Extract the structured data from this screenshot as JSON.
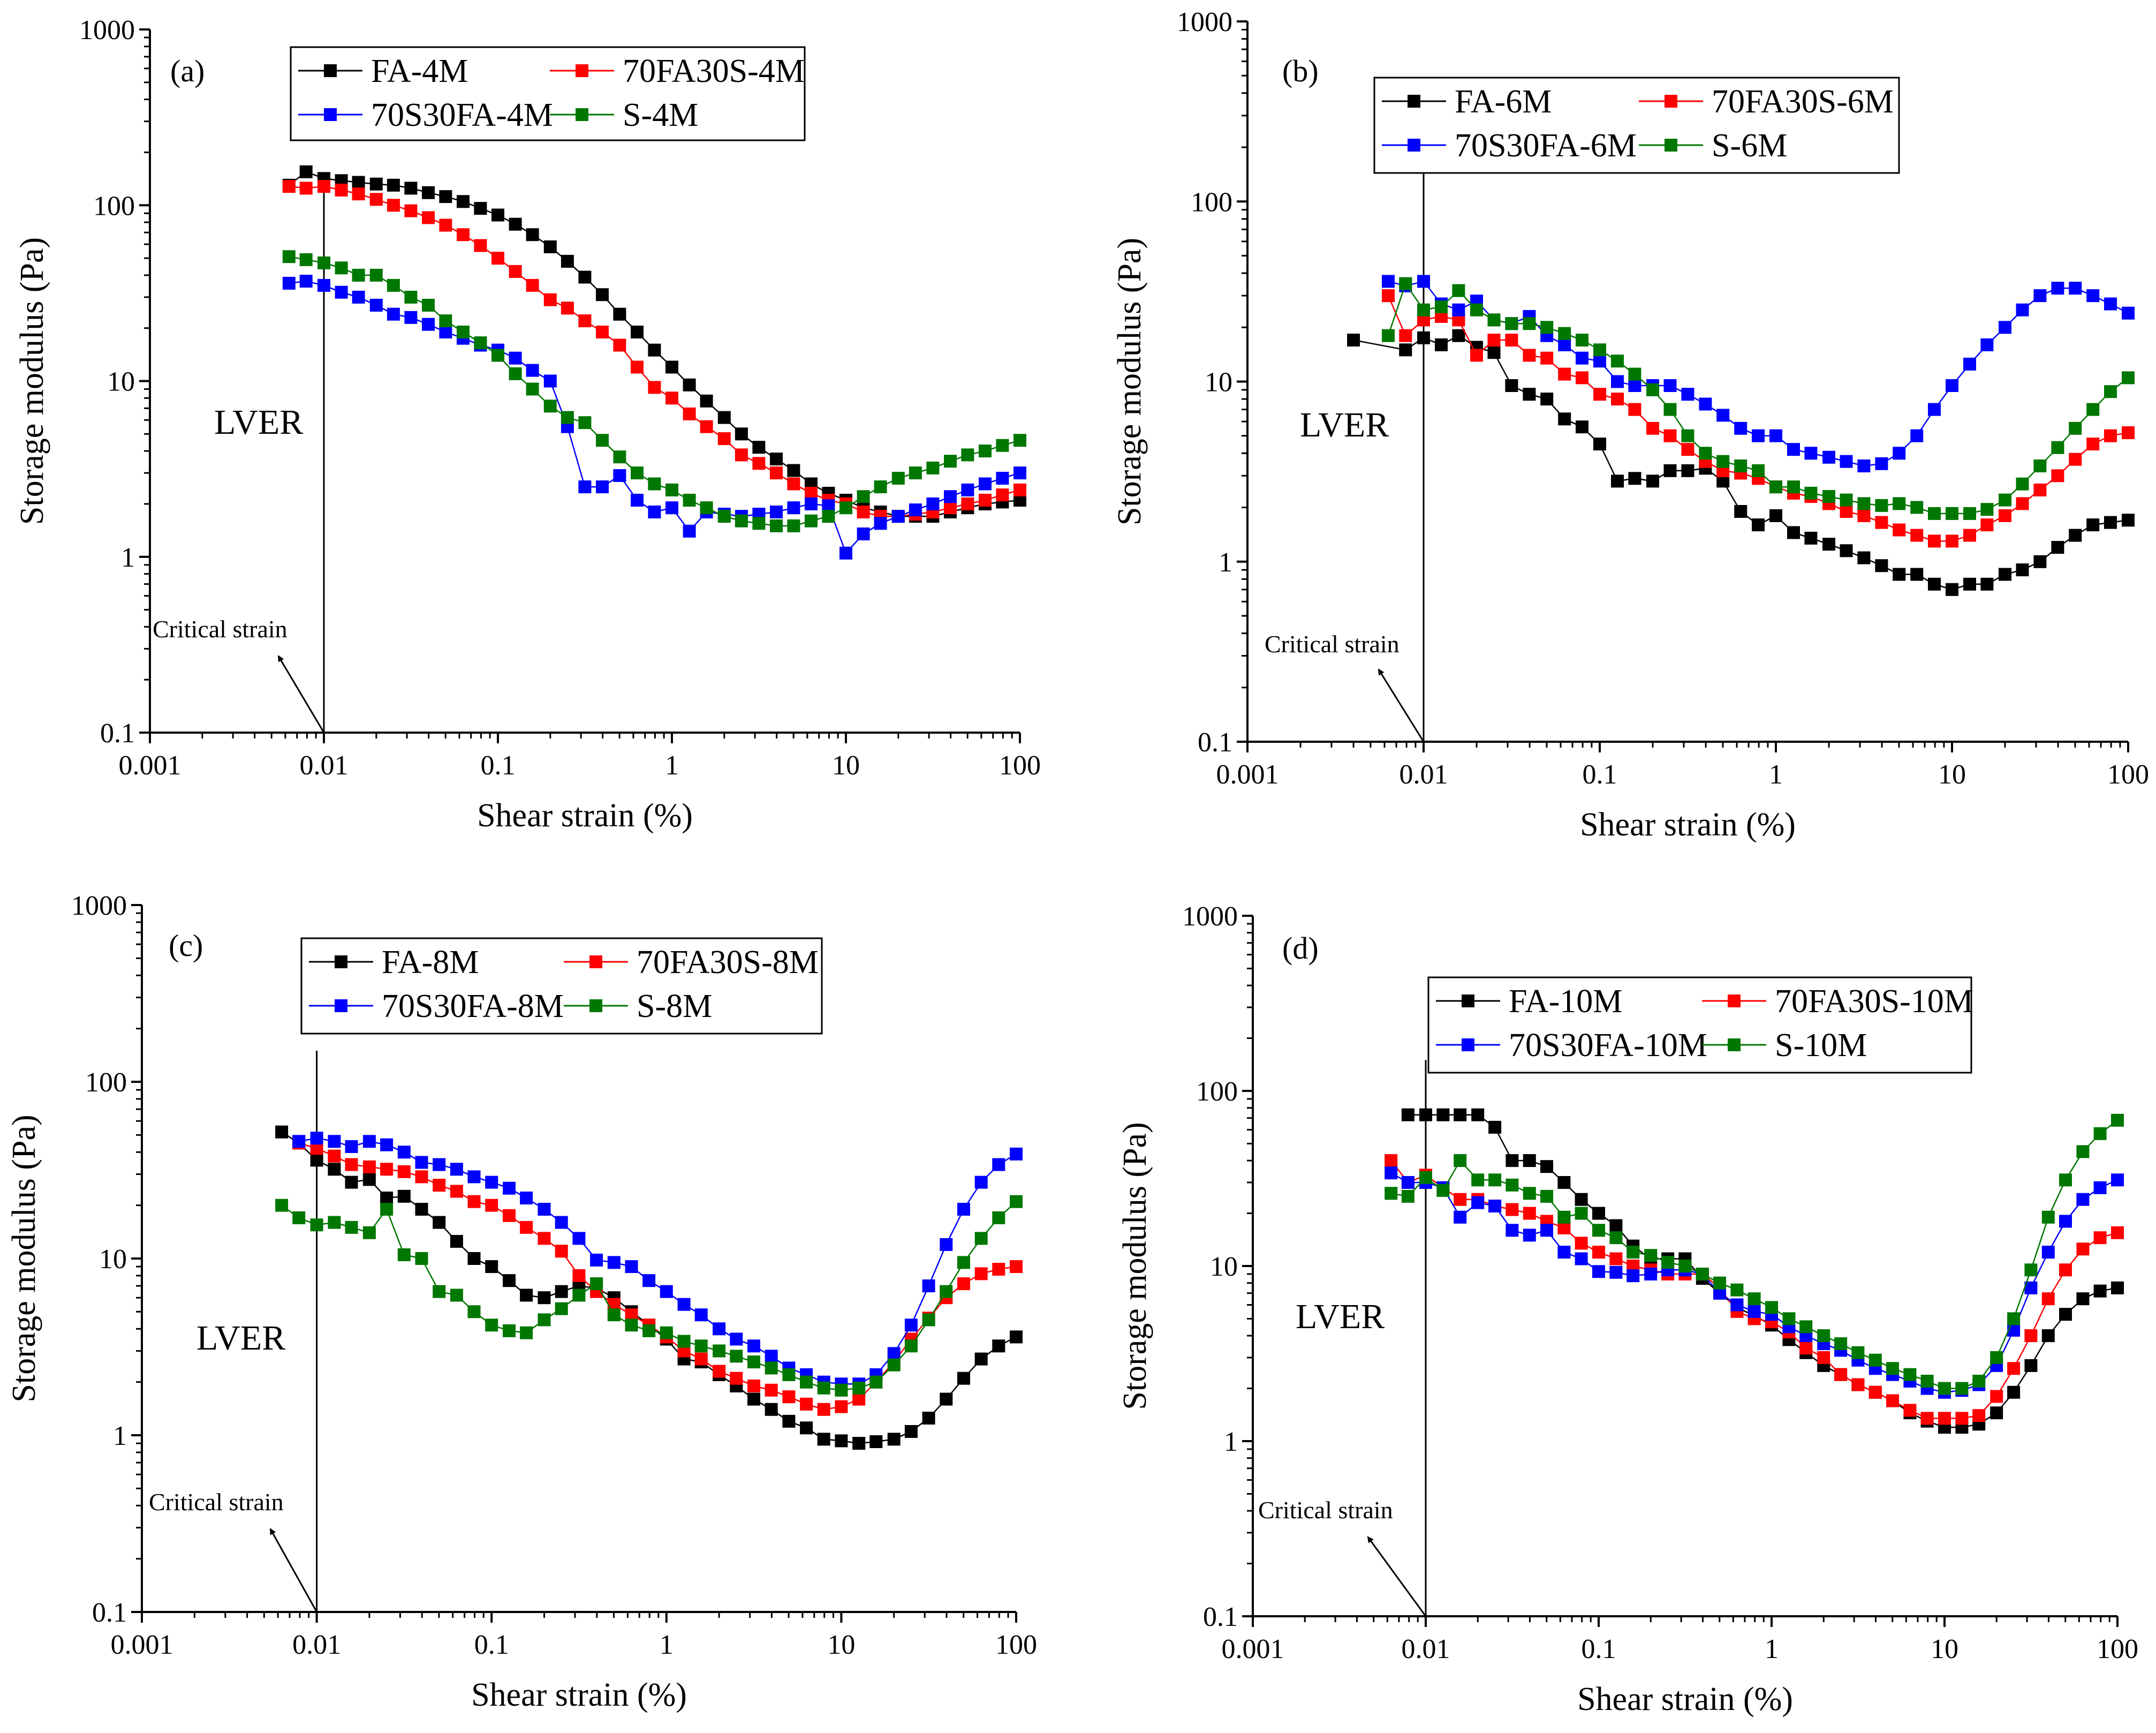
{
  "colors": {
    "black": "#000000",
    "red": "#ff0000",
    "blue": "#0000ff",
    "green": "#007700"
  },
  "chart_data": [
    {
      "type": "scatter",
      "id": "a",
      "panel_label": "(a)",
      "xlabel": "Shear strain (%)",
      "ylabel": "Storage modulus (Pa)",
      "xscale": "log",
      "yscale": "log",
      "xlim": [
        0.001,
        100
      ],
      "ylim": [
        0.1,
        1000
      ],
      "x_tick_labels": [
        "0.001",
        "0.01",
        "0.1",
        "1",
        "10",
        "100"
      ],
      "y_tick_labels": [
        "0.1",
        "1",
        "10",
        "100",
        "1000"
      ],
      "annotations": {
        "lver": "LVER",
        "critical_strain": "Critical strain",
        "critical_strain_x": 0.01
      },
      "legend_position": "top-center",
      "x": [
        0.0063,
        0.0079,
        0.01,
        0.0126,
        0.0158,
        0.02,
        0.0251,
        0.0316,
        0.0398,
        0.0501,
        0.0631,
        0.0794,
        0.1,
        0.126,
        0.158,
        0.2,
        0.251,
        0.316,
        0.398,
        0.501,
        0.631,
        0.794,
        1,
        1.26,
        1.58,
        2,
        2.51,
        3.16,
        3.98,
        5.01,
        6.31,
        7.94,
        10,
        12.6,
        15.8,
        20,
        25.1,
        31.6,
        39.8,
        50.1,
        63.1,
        79.4,
        100
      ],
      "series": [
        {
          "name": "FA-4M",
          "color": "#000000",
          "values": [
            130,
            155,
            142,
            138,
            135,
            132,
            130,
            125,
            118,
            112,
            105,
            96,
            88,
            78,
            68,
            58,
            48,
            39,
            31,
            24,
            19,
            15,
            12,
            9.5,
            7.7,
            6.2,
            5,
            4.2,
            3.6,
            3.1,
            2.6,
            2.3,
            2.1,
            1.9,
            1.8,
            1.7,
            1.7,
            1.7,
            1.8,
            1.9,
            2,
            2.05,
            2.1
          ]
        },
        {
          "name": "70FA30S-4M",
          "color": "#ff0000",
          "values": [
            128,
            125,
            128,
            122,
            116,
            108,
            100,
            93,
            85,
            77,
            68,
            59,
            50,
            42,
            35,
            29,
            26,
            22,
            19,
            16,
            12,
            9.2,
            8,
            6.5,
            5.5,
            4.7,
            3.8,
            3.4,
            3,
            2.6,
            2.3,
            2.1,
            2.0,
            1.8,
            1.7,
            1.7,
            1.75,
            1.8,
            1.9,
            2.0,
            2.1,
            2.25,
            2.4
          ]
        },
        {
          "name": "70S30FA-4M",
          "color": "#0000ff",
          "values": [
            36,
            37,
            35,
            32,
            30,
            27,
            24,
            23,
            21,
            19,
            17.5,
            16,
            15,
            13.5,
            11.5,
            10,
            5.5,
            2.5,
            2.5,
            2.9,
            2.1,
            1.8,
            1.9,
            1.4,
            1.8,
            1.75,
            1.7,
            1.75,
            1.8,
            1.9,
            2.0,
            1.95,
            1.05,
            1.35,
            1.55,
            1.7,
            1.85,
            2.0,
            2.2,
            2.4,
            2.6,
            2.8,
            3.0
          ]
        },
        {
          "name": "S-4M",
          "color": "#007700",
          "values": [
            51,
            49,
            47,
            44,
            40,
            40,
            35,
            30,
            27,
            22,
            19,
            16.5,
            14,
            11,
            9,
            7.2,
            6.2,
            5.8,
            4.6,
            3.7,
            3,
            2.6,
            2.4,
            2.1,
            1.9,
            1.7,
            1.6,
            1.55,
            1.5,
            1.5,
            1.6,
            1.7,
            1.9,
            2.2,
            2.5,
            2.8,
            3.0,
            3.2,
            3.5,
            3.8,
            4.0,
            4.3,
            4.6
          ]
        }
      ]
    },
    {
      "type": "scatter",
      "id": "b",
      "panel_label": "(b)",
      "xlabel": "Shear strain (%)",
      "ylabel": "Storage modulus (Pa)",
      "xscale": "log",
      "yscale": "log",
      "xlim": [
        0.001,
        100
      ],
      "ylim": [
        0.1,
        1000
      ],
      "x_tick_labels": [
        "0.001",
        "0.01",
        "0.1",
        "1",
        "10",
        "100"
      ],
      "y_tick_labels": [
        "0.1",
        "1",
        "10",
        "100",
        "1000"
      ],
      "annotations": {
        "lver": "LVER",
        "critical_strain": "Critical strain",
        "critical_strain_x": 0.01
      },
      "legend_position": "top-center",
      "x": [
        0.004,
        0.0063,
        0.0079,
        0.01,
        0.0126,
        0.0158,
        0.02,
        0.0251,
        0.0316,
        0.0398,
        0.0501,
        0.0631,
        0.0794,
        0.1,
        0.126,
        0.158,
        0.2,
        0.251,
        0.316,
        0.398,
        0.501,
        0.631,
        0.794,
        1,
        1.26,
        1.58,
        2,
        2.51,
        3.16,
        3.98,
        5.01,
        6.31,
        7.94,
        10,
        12.6,
        15.8,
        20,
        25.1,
        31.6,
        39.8,
        50.1,
        63.1,
        79.4,
        100
      ],
      "series": [
        {
          "name": "FA-6M",
          "color": "#000000",
          "values": [
            17,
            null,
            15,
            17.5,
            16,
            18,
            15.5,
            14.5,
            9.5,
            8.5,
            8,
            6.2,
            5.6,
            4.5,
            2.8,
            2.9,
            2.8,
            3.2,
            3.2,
            3.3,
            2.8,
            1.9,
            1.6,
            1.8,
            1.45,
            1.35,
            1.25,
            1.15,
            1.05,
            0.95,
            0.85,
            0.85,
            0.75,
            0.7,
            0.75,
            0.75,
            0.85,
            0.9,
            1.0,
            1.2,
            1.4,
            1.6,
            1.65,
            1.7
          ]
        },
        {
          "name": "70FA30S-6M",
          "color": "#ff0000",
          "values": [
            null,
            30,
            18,
            22,
            23,
            22,
            14,
            17,
            17,
            14,
            13.5,
            11,
            10.5,
            8.5,
            8,
            7,
            5.5,
            5,
            4.2,
            3.6,
            3.2,
            3.1,
            2.9,
            2.6,
            2.4,
            2.3,
            2.1,
            1.9,
            1.8,
            1.65,
            1.5,
            1.4,
            1.3,
            1.3,
            1.4,
            1.6,
            1.8,
            2.1,
            2.5,
            3.0,
            3.7,
            4.5,
            5.0,
            5.2
          ]
        },
        {
          "name": "70S30FA-6M",
          "color": "#0000ff",
          "values": [
            null,
            36,
            34,
            36,
            27,
            25,
            28,
            22,
            21,
            23,
            18,
            16,
            13.5,
            13,
            10,
            9.5,
            9.5,
            9.5,
            8.5,
            7.5,
            6.5,
            5.5,
            5,
            5,
            4.2,
            4,
            3.8,
            3.6,
            3.4,
            3.5,
            4,
            5,
            7,
            9.5,
            12.5,
            16,
            20,
            25,
            30,
            33,
            33,
            30,
            27,
            24
          ]
        },
        {
          "name": "S-6M",
          "color": "#007700",
          "values": [
            null,
            18,
            35,
            25,
            26,
            32,
            25,
            22,
            21,
            21,
            20,
            18.5,
            17,
            15,
            13,
            11,
            9,
            7,
            5,
            4,
            3.6,
            3.4,
            3.2,
            2.6,
            2.6,
            2.4,
            2.3,
            2.2,
            2.1,
            2.05,
            2.1,
            2.0,
            1.85,
            1.85,
            1.85,
            1.95,
            2.2,
            2.7,
            3.4,
            4.3,
            5.5,
            7.0,
            8.8,
            10.5
          ]
        }
      ]
    },
    {
      "type": "scatter",
      "id": "c",
      "panel_label": "(c)",
      "xlabel": "Shear strain (%)",
      "ylabel": "Storage modulus (Pa)",
      "xscale": "log",
      "yscale": "log",
      "xlim": [
        0.001,
        100
      ],
      "ylim": [
        0.1,
        1000
      ],
      "x_tick_labels": [
        "0.001",
        "0.01",
        "0.1",
        "1",
        "10",
        "100"
      ],
      "y_tick_labels": [
        "0.1",
        "1",
        "10",
        "100",
        "1000"
      ],
      "annotations": {
        "lver": "LVER",
        "critical_strain": "Critical strain",
        "critical_strain_x": 0.01
      },
      "legend_position": "top-center",
      "x": [
        0.0063,
        0.0079,
        0.01,
        0.0126,
        0.0158,
        0.02,
        0.0251,
        0.0316,
        0.0398,
        0.0501,
        0.0631,
        0.0794,
        0.1,
        0.126,
        0.158,
        0.2,
        0.251,
        0.316,
        0.398,
        0.501,
        0.631,
        0.794,
        1,
        1.26,
        1.58,
        2,
        2.51,
        3.16,
        3.98,
        5.01,
        6.31,
        7.94,
        10,
        12.6,
        15.8,
        20,
        25.1,
        31.6,
        39.8,
        50.1,
        63.1,
        79.4,
        100
      ],
      "series": [
        {
          "name": "FA-8M",
          "color": "#000000",
          "values": [
            52,
            45,
            36,
            32,
            27,
            28,
            22,
            22.5,
            19,
            16,
            12.5,
            10,
            9,
            7.5,
            6.2,
            6,
            6.5,
            7,
            6.8,
            6,
            5,
            4.2,
            3.5,
            2.7,
            2.6,
            2.2,
            1.9,
            1.6,
            1.4,
            1.2,
            1.1,
            0.95,
            0.93,
            0.9,
            0.92,
            0.95,
            1.05,
            1.25,
            1.6,
            2.1,
            2.7,
            3.2,
            3.6
          ]
        },
        {
          "name": "70FA30S-8M",
          "color": "#ff0000",
          "values": [
            null,
            45,
            42,
            38,
            34,
            33,
            32,
            31,
            29,
            26,
            24,
            21,
            20,
            17.5,
            15,
            13,
            11,
            8,
            6.5,
            5.5,
            4.8,
            4.2,
            3.6,
            3.0,
            2.7,
            2.3,
            2.1,
            1.9,
            1.8,
            1.65,
            1.5,
            1.4,
            1.45,
            1.6,
            2.0,
            2.6,
            3.5,
            4.6,
            6.0,
            7.2,
            8.2,
            8.7,
            9.0
          ]
        },
        {
          "name": "70S30FA-8M",
          "color": "#0000ff",
          "values": [
            null,
            46,
            48,
            46,
            43,
            46,
            44,
            40,
            35,
            34,
            32,
            29,
            27,
            25,
            22,
            19,
            16,
            13,
            9.8,
            9.5,
            9,
            7.5,
            6.5,
            5.5,
            4.8,
            4.0,
            3.5,
            3.2,
            2.8,
            2.4,
            2.2,
            2.0,
            1.95,
            1.95,
            2.2,
            2.9,
            4.2,
            7.0,
            12,
            19,
            27,
            34,
            39
          ]
        },
        {
          "name": "S-8M",
          "color": "#007700",
          "values": [
            20,
            17,
            15.5,
            16,
            15,
            14,
            19,
            10.5,
            10,
            6.5,
            6.2,
            5,
            4.2,
            3.9,
            3.8,
            4.5,
            5.2,
            6.2,
            7.2,
            4.8,
            4.2,
            3.9,
            3.8,
            3.4,
            3.2,
            3.0,
            2.8,
            2.6,
            2.4,
            2.2,
            2.0,
            1.85,
            1.8,
            1.85,
            2.0,
            2.5,
            3.2,
            4.5,
            6.5,
            9.5,
            13,
            17,
            21
          ]
        }
      ]
    },
    {
      "type": "scatter",
      "id": "d",
      "panel_label": "(d)",
      "xlabel": "Shear strain (%)",
      "ylabel": "Storage modulus (Pa)",
      "xscale": "log",
      "yscale": "log",
      "xlim": [
        0.001,
        100
      ],
      "ylim": [
        0.1,
        1000
      ],
      "x_tick_labels": [
        "0.001",
        "0.01",
        "0.1",
        "1",
        "10",
        "100"
      ],
      "y_tick_labels": [
        "0.1",
        "1",
        "10",
        "100",
        "1000"
      ],
      "annotations": {
        "lver": "LVER",
        "critical_strain": "Critical strain",
        "critical_strain_x": 0.01
      },
      "legend_position": "top-center",
      "x": [
        0.0063,
        0.0079,
        0.01,
        0.0126,
        0.0158,
        0.02,
        0.0251,
        0.0316,
        0.0398,
        0.0501,
        0.0631,
        0.0794,
        0.1,
        0.126,
        0.158,
        0.2,
        0.251,
        0.316,
        0.398,
        0.501,
        0.631,
        0.794,
        1,
        1.26,
        1.58,
        2,
        2.51,
        3.16,
        3.98,
        5.01,
        6.31,
        7.94,
        10,
        12.6,
        15.8,
        20,
        25.1,
        31.6,
        39.8,
        50.1,
        63.1,
        79.4,
        100
      ],
      "series": [
        {
          "name": "FA-10M",
          "color": "#000000",
          "values": [
            null,
            73,
            73,
            73,
            73,
            73,
            62,
            40,
            40,
            37,
            30,
            24,
            20,
            17,
            13,
            11,
            11,
            11,
            8.5,
            7,
            5.8,
            5.2,
            4.6,
            3.8,
            3.2,
            2.7,
            2.4,
            2.1,
            1.9,
            1.7,
            1.45,
            1.3,
            1.2,
            1.2,
            1.25,
            1.45,
            1.9,
            2.7,
            4.0,
            5.3,
            6.5,
            7.2,
            7.5
          ]
        },
        {
          "name": "70FA30S-10M",
          "color": "#ff0000",
          "values": [
            40,
            30,
            33,
            28,
            24,
            24,
            22,
            21,
            20,
            18,
            16.5,
            13.5,
            12,
            11,
            10,
            9.5,
            9,
            9,
            9,
            7.5,
            5.5,
            5,
            4.8,
            4.2,
            3.4,
            3.0,
            2.4,
            2.1,
            1.9,
            1.7,
            1.5,
            1.35,
            1.35,
            1.35,
            1.4,
            1.8,
            2.6,
            4.0,
            6.5,
            9.5,
            12.5,
            14.5,
            15.5
          ]
        },
        {
          "name": "70S30FA-10M",
          "color": "#0000ff",
          "values": [
            34,
            30,
            30,
            28,
            19,
            23,
            22,
            16,
            15,
            16,
            12,
            11,
            9.3,
            9.2,
            8.8,
            9,
            9.5,
            9.5,
            9,
            7,
            6,
            5.5,
            5.3,
            4.5,
            4.0,
            3.6,
            3.3,
            2.9,
            2.6,
            2.4,
            2.2,
            2.0,
            1.9,
            1.95,
            2.1,
            2.7,
            4.3,
            7.5,
            12,
            18,
            24,
            28,
            31
          ]
        },
        {
          "name": "S-10M",
          "color": "#007700",
          "values": [
            26,
            25,
            32,
            27,
            40,
            31,
            31,
            29,
            26,
            25,
            19,
            20,
            16,
            14.5,
            12,
            11.5,
            10.5,
            10,
            9,
            8,
            7.3,
            6.5,
            5.8,
            5.0,
            4.5,
            4.0,
            3.6,
            3.2,
            2.9,
            2.6,
            2.4,
            2.2,
            2.0,
            2.0,
            2.2,
            3.0,
            5.0,
            9.5,
            19,
            31,
            45,
            57,
            68
          ]
        }
      ]
    }
  ]
}
